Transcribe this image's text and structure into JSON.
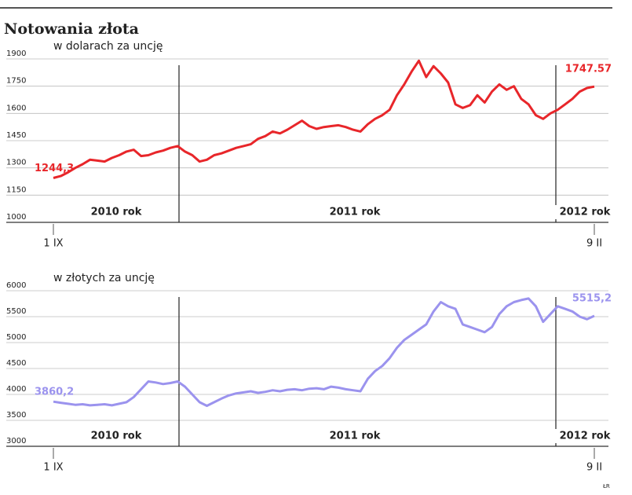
{
  "title": "Notowania złota",
  "credit": "ŁR",
  "chart_data": [
    {
      "type": "line",
      "subtitle": "w dolarach za uncję",
      "color": "#e8262a",
      "annotations": [
        "2010 rok",
        "2011 rok",
        "2012 rok"
      ],
      "categories": [
        "1 IX",
        null,
        null,
        null,
        null,
        null,
        null,
        null,
        null,
        null,
        null,
        null,
        null,
        null,
        null,
        null,
        null,
        null,
        null,
        null,
        null,
        null,
        null,
        null,
        null,
        null,
        null,
        null,
        null,
        null,
        null,
        null,
        null,
        null,
        null,
        null,
        null,
        null,
        null,
        null,
        null,
        null,
        null,
        null,
        null,
        null,
        null,
        null,
        null,
        null,
        null,
        null,
        null,
        null,
        null,
        null,
        null,
        null,
        null,
        null,
        null,
        null,
        null,
        null,
        null,
        null,
        null,
        null,
        null,
        null,
        null,
        null,
        null,
        null,
        "9 II"
      ],
      "values": [
        1244.3,
        1255,
        1275,
        1300,
        1320,
        1345,
        1340,
        1335,
        1355,
        1370,
        1390,
        1400,
        1365,
        1370,
        1385,
        1395,
        1410,
        1420,
        1390,
        1370,
        1335,
        1345,
        1370,
        1380,
        1395,
        1410,
        1420,
        1430,
        1460,
        1475,
        1500,
        1490,
        1510,
        1535,
        1560,
        1530,
        1515,
        1525,
        1530,
        1535,
        1525,
        1510,
        1500,
        1540,
        1570,
        1590,
        1620,
        1700,
        1760,
        1830,
        1890,
        1800,
        1860,
        1820,
        1770,
        1650,
        1630,
        1645,
        1700,
        1660,
        1720,
        1760,
        1730,
        1750,
        1680,
        1650,
        1590,
        1570,
        1600,
        1620,
        1650,
        1680,
        1720,
        1740,
        1747.57
      ],
      "value_labels": [
        "1244,3",
        null,
        null,
        null,
        null,
        null,
        null,
        null,
        null,
        null,
        null,
        null,
        null,
        null,
        null,
        null,
        null,
        null,
        null,
        null,
        null,
        null,
        null,
        null,
        null,
        null,
        null,
        null,
        null,
        null,
        null,
        null,
        null,
        null,
        null,
        null,
        null,
        null,
        null,
        null,
        null,
        null,
        null,
        null,
        null,
        null,
        null,
        null,
        null,
        null,
        null,
        null,
        null,
        null,
        null,
        null,
        null,
        null,
        null,
        null,
        null,
        null,
        null,
        null,
        null,
        null,
        null,
        null,
        null,
        null,
        null,
        null,
        null,
        null,
        "1747.57"
      ],
      "ylim": [
        1000,
        1900
      ],
      "yticks": [
        1000,
        1150,
        1300,
        1450,
        1600,
        1750,
        1900
      ],
      "grid": true
    },
    {
      "type": "line",
      "subtitle": "w złotych za uncję",
      "color": "#9b93ee",
      "annotations": [
        "2010 rok",
        "2011 rok",
        "2012 rok"
      ],
      "categories": [
        "1 IX",
        null,
        null,
        null,
        null,
        null,
        null,
        null,
        null,
        null,
        null,
        null,
        null,
        null,
        null,
        null,
        null,
        null,
        null,
        null,
        null,
        null,
        null,
        null,
        null,
        null,
        null,
        null,
        null,
        null,
        null,
        null,
        null,
        null,
        null,
        null,
        null,
        null,
        null,
        null,
        null,
        null,
        null,
        null,
        null,
        null,
        null,
        null,
        null,
        null,
        null,
        null,
        null,
        null,
        null,
        null,
        null,
        null,
        null,
        null,
        null,
        null,
        null,
        null,
        null,
        null,
        null,
        null,
        null,
        null,
        null,
        null,
        null,
        null,
        "9 II"
      ],
      "values": [
        3860.2,
        3840,
        3820,
        3800,
        3810,
        3790,
        3800,
        3810,
        3790,
        3820,
        3850,
        3950,
        4100,
        4250,
        4230,
        4200,
        4220,
        4250,
        4150,
        4000,
        3850,
        3780,
        3850,
        3920,
        3980,
        4020,
        4040,
        4060,
        4030,
        4050,
        4080,
        4060,
        4090,
        4100,
        4080,
        4110,
        4120,
        4100,
        4150,
        4130,
        4100,
        4080,
        4060,
        4300,
        4450,
        4550,
        4700,
        4900,
        5050,
        5150,
        5250,
        5350,
        5600,
        5780,
        5700,
        5650,
        5350,
        5300,
        5250,
        5200,
        5300,
        5550,
        5700,
        5780,
        5820,
        5850,
        5700,
        5400,
        5550,
        5700,
        5650,
        5600,
        5500,
        5450,
        5515.2
      ],
      "value_labels": [
        "3860,2",
        null,
        null,
        null,
        null,
        null,
        null,
        null,
        null,
        null,
        null,
        null,
        null,
        null,
        null,
        null,
        null,
        null,
        null,
        null,
        null,
        null,
        null,
        null,
        null,
        null,
        null,
        null,
        null,
        null,
        null,
        null,
        null,
        null,
        null,
        null,
        null,
        null,
        null,
        null,
        null,
        null,
        null,
        null,
        null,
        null,
        null,
        null,
        null,
        null,
        null,
        null,
        null,
        null,
        null,
        null,
        null,
        null,
        null,
        null,
        null,
        null,
        null,
        null,
        null,
        null,
        null,
        null,
        null,
        null,
        null,
        null,
        null,
        null,
        "5515,2"
      ],
      "ylim": [
        3000,
        6000
      ],
      "yticks": [
        3000,
        3500,
        4000,
        4500,
        5000,
        5500,
        6000
      ],
      "grid": true
    }
  ]
}
